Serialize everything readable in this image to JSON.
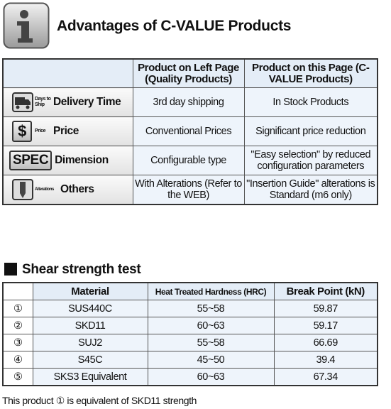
{
  "header": {
    "title": "Advantages of C-VALUE Products"
  },
  "table": {
    "columns": [
      "Product on Left Page (Quality Products)",
      "Product on this Page (C-VALUE Products)"
    ],
    "rows": [
      {
        "small": "Days to Ship",
        "label": "Delivery Time",
        "left": "3rd day shipping",
        "right": "In Stock Products"
      },
      {
        "badge": "$",
        "small": "Price",
        "label": "Price",
        "left": "Conventional Prices",
        "right": "Significant price reduction"
      },
      {
        "badge": "SPEC",
        "label": "Dimension",
        "left": "Configurable type",
        "right": "\"Easy selection\" by reduced configuration parameters"
      },
      {
        "small": "Alterations",
        "label": "Others",
        "left": "With Alterations (Refer to the WEB)",
        "right": "\"Insertion Guide\" alterations is Standard (m6 only)"
      }
    ]
  },
  "section": {
    "title": "Shear strength test"
  },
  "shear_table": {
    "columns": [
      "Material",
      "Heat Treated Hardness (HRC)",
      "Break Point (kN)"
    ],
    "rows": [
      [
        "①",
        "SUS440C",
        "55~58",
        "59.87"
      ],
      [
        "②",
        "SKD11",
        "60~63",
        "59.17"
      ],
      [
        "③",
        "SUJ2",
        "55~58",
        "66.69"
      ],
      [
        "④",
        "S45C",
        "45~50",
        "39.4"
      ],
      [
        "⑤",
        "SKS3 Equivalent",
        "60~63",
        "67.34"
      ]
    ]
  },
  "footnote": "This product ① is equivalent of SKD11 strength"
}
